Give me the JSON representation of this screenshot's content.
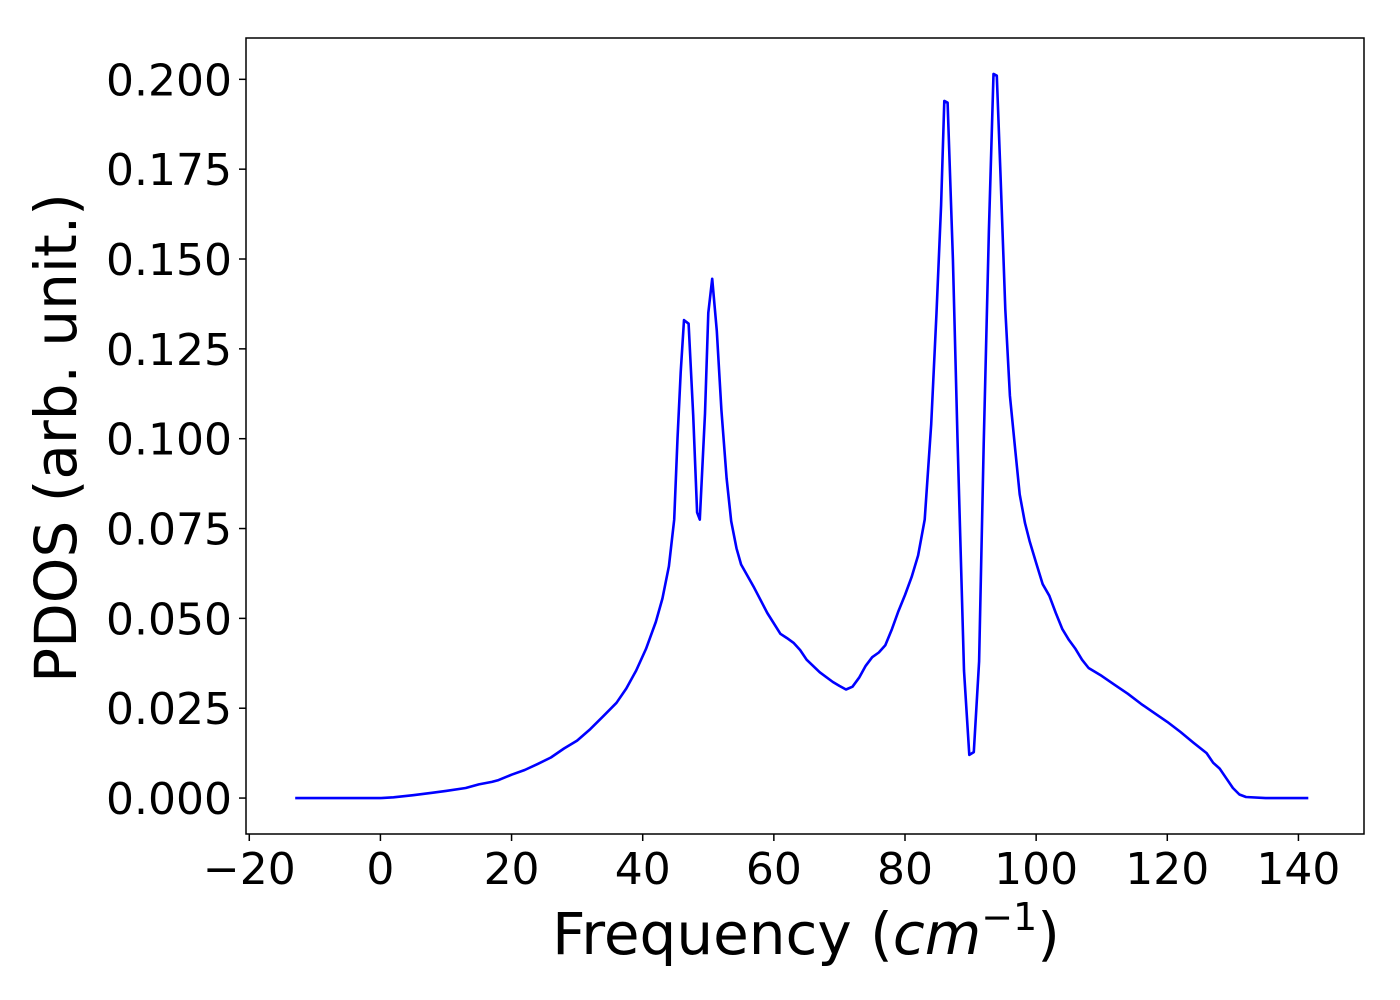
{
  "chart_data": {
    "type": "line",
    "title": "",
    "xlabel": "Frequency (cm⁻¹)",
    "xlabel_main": "Frequency (",
    "xlabel_unit": "cm",
    "xlabel_exp": "−1",
    "xlabel_close": ")",
    "ylabel": "PDOS (arb. unit.)",
    "xlim": [
      -20.5,
      150
    ],
    "ylim": [
      -0.01,
      0.2115
    ],
    "x_ticks": [
      -20,
      0,
      20,
      40,
      60,
      80,
      100,
      120,
      140
    ],
    "x_tick_labels": [
      "−20",
      "0",
      "20",
      "40",
      "60",
      "80",
      "100",
      "120",
      "140"
    ],
    "y_ticks": [
      0.0,
      0.025,
      0.05,
      0.075,
      0.1,
      0.125,
      0.15,
      0.175,
      0.2
    ],
    "y_tick_labels": [
      "0.000",
      "0.025",
      "0.050",
      "0.075",
      "0.100",
      "0.125",
      "0.150",
      "0.175",
      "0.200"
    ],
    "grid": false,
    "legend": "none",
    "series": [
      {
        "color": "#0000ff",
        "x": [
          -13,
          -5,
          0,
          2,
          5,
          8,
          10,
          13,
          15,
          17,
          18,
          20,
          22,
          24,
          26,
          28,
          30,
          32,
          34,
          36,
          37.5,
          39,
          40.5,
          42,
          43,
          44,
          44.8,
          45.3,
          45.8,
          46.3,
          47,
          47.7,
          48.3,
          48.7,
          49.5,
          50,
          50.6,
          51.3,
          52,
          52.8,
          53.5,
          54.3,
          55,
          57,
          59,
          61,
          62,
          63,
          64,
          65,
          67,
          69,
          70,
          71,
          72,
          73,
          74,
          75,
          76,
          77,
          78,
          79,
          80,
          81,
          82,
          83,
          84,
          84.8,
          85.5,
          86,
          86.5,
          87.3,
          88,
          89,
          89.8,
          90.5,
          91.3,
          92,
          92.8,
          93.5,
          94,
          94.6,
          95.3,
          96,
          96.8,
          97.5,
          98.3,
          99,
          100,
          101,
          102,
          103,
          104,
          105,
          106,
          107,
          108,
          110,
          112,
          114,
          116,
          118,
          120,
          122,
          124,
          126,
          127,
          128,
          129,
          130,
          131,
          132,
          135,
          140,
          141.5
        ],
        "y": [
          0,
          0,
          0,
          0.0002,
          0.0008,
          0.0015,
          0.002,
          0.0028,
          0.0038,
          0.0045,
          0.005,
          0.0065,
          0.0078,
          0.0095,
          0.0113,
          0.0138,
          0.016,
          0.0192,
          0.0228,
          0.0265,
          0.0305,
          0.0355,
          0.0415,
          0.049,
          0.0555,
          0.0645,
          0.0775,
          0.1,
          0.1185,
          0.133,
          0.132,
          0.1065,
          0.0795,
          0.0775,
          0.107,
          0.135,
          0.1445,
          0.13,
          0.108,
          0.089,
          0.077,
          0.0695,
          0.065,
          0.0585,
          0.0515,
          0.0457,
          0.0445,
          0.0432,
          0.0412,
          0.0385,
          0.035,
          0.0323,
          0.0312,
          0.0302,
          0.031,
          0.0335,
          0.0368,
          0.0392,
          0.0405,
          0.0425,
          0.047,
          0.052,
          0.0565,
          0.0615,
          0.0675,
          0.0775,
          0.104,
          0.135,
          0.165,
          0.194,
          0.1935,
          0.15,
          0.1,
          0.0355,
          0.012,
          0.0128,
          0.038,
          0.0985,
          0.158,
          0.2015,
          0.201,
          0.172,
          0.136,
          0.112,
          0.097,
          0.0845,
          0.0765,
          0.0715,
          0.0655,
          0.0595,
          0.0563,
          0.0515,
          0.047,
          0.044,
          0.0415,
          0.0385,
          0.0362,
          0.034,
          0.0315,
          0.029,
          0.0262,
          0.0237,
          0.0212,
          0.0184,
          0.0154,
          0.0125,
          0.0098,
          0.0082,
          0.0055,
          0.0028,
          0.001,
          0.0003,
          0,
          0,
          0
        ]
      }
    ]
  }
}
